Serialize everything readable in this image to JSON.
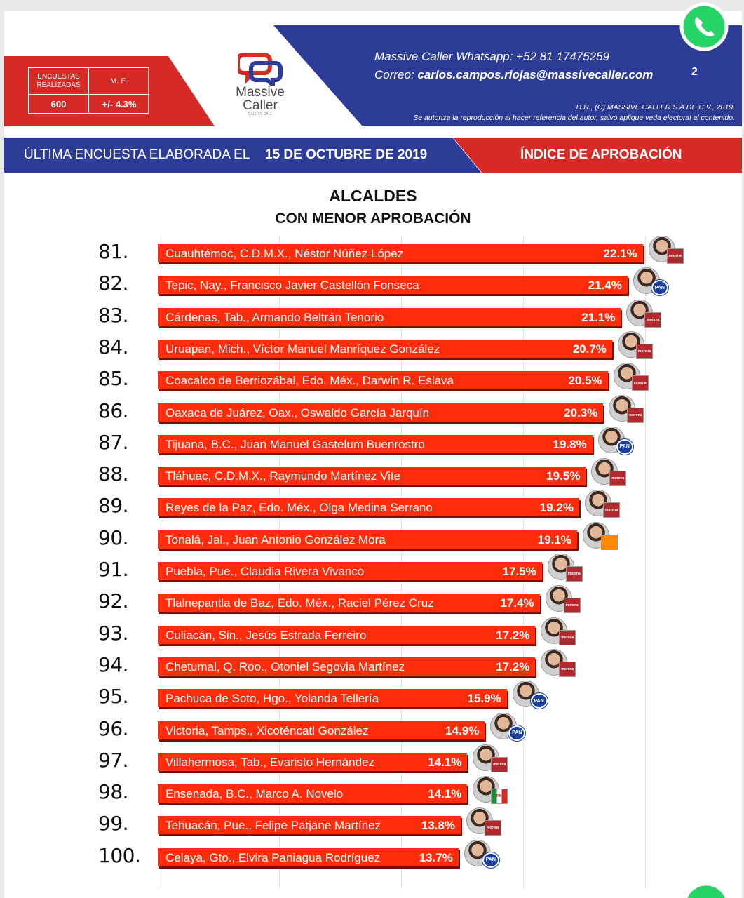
{
  "header": {
    "stats": {
      "col1_header": "ENCUESTAS REALIZADAS",
      "col2_header": "M. E.",
      "col1_value": "600",
      "col2_value": "+/- 4.3%"
    },
    "logo": {
      "line1": "Massive",
      "line2": "Caller",
      "tagline": "CALL TO CALL"
    },
    "contact_line1": "Massive Caller Whatsapp: +52   81 17475259",
    "contact_line2_prefix": "Correo: ",
    "contact_line2_email": "carlos.campos.riojas@massivecaller.com",
    "page_number": "2",
    "legal_line1": "D.R., (C) MASSIVE CALLER S.A DE C.V., 2019.",
    "legal_line2": "Se autoriza la reproducción al hacer referencia del autor, salvo aplique veda electoral al contenido."
  },
  "banner": {
    "left_text": "ÚLTIMA ENCUESTA ELABORADA EL",
    "date": "15 DE OCTUBRE DE 2019",
    "right_text": "ÍNDICE DE APROBACIÓN"
  },
  "colors": {
    "bar": "#ff2d0c",
    "blue": "#2d3c96",
    "red": "#d52a26"
  },
  "chart_data": {
    "type": "bar",
    "orientation": "horizontal",
    "title": "ALCALDES",
    "subtitle": "CON MENOR APROBACIÓN",
    "rows": [
      {
        "rank": "81.",
        "label": "Cuauhtémoc, C.D.M.X., Néstor Núñez López",
        "value": 22.1,
        "value_label": "22.1%",
        "party": "morena"
      },
      {
        "rank": "82.",
        "label": "Tepic, Nay., Francisco Javier Castellón Fonseca",
        "value": 21.4,
        "value_label": "21.4%",
        "party": "pan"
      },
      {
        "rank": "83.",
        "label": "Cárdenas, Tab., Armando Beltrán Tenorio",
        "value": 21.1,
        "value_label": "21.1%",
        "party": "morena"
      },
      {
        "rank": "84.",
        "label": "Uruapan, Mich., Víctor Manuel Manríquez González",
        "value": 20.7,
        "value_label": "20.7%",
        "party": "morena"
      },
      {
        "rank": "85.",
        "label": "Coacalco de Berriozábal, Edo. Méx., Darwin R. Eslava",
        "value": 20.5,
        "value_label": "20.5%",
        "party": "morena"
      },
      {
        "rank": "86.",
        "label": "Oaxaca de Juárez, Oax., Oswaldo García Jarquín",
        "value": 20.3,
        "value_label": "20.3%",
        "party": "morena"
      },
      {
        "rank": "87.",
        "label": "Tijuana, B.C., Juan Manuel Gastelum Buenrostro",
        "value": 19.8,
        "value_label": "19.8%",
        "party": "pan"
      },
      {
        "rank": "88.",
        "label": "Tláhuac, C.D.M.X., Raymundo Martínez Vite",
        "value": 19.5,
        "value_label": "19.5%",
        "party": "morena"
      },
      {
        "rank": "89.",
        "label": "Reyes de la Paz, Edo. Méx., Olga Medina Serrano",
        "value": 19.2,
        "value_label": "19.2%",
        "party": "morena"
      },
      {
        "rank": "90.",
        "label": "Tonalá, Jal., Juan Antonio González Mora",
        "value": 19.1,
        "value_label": "19.1%",
        "party": "mc"
      },
      {
        "rank": "91.",
        "label": "Puebla, Pue., Claudia Rivera Vivanco",
        "value": 17.5,
        "value_label": "17.5%",
        "party": "morena"
      },
      {
        "rank": "92.",
        "label": "Tlalnepantla de Baz, Edo. Méx., Raciel Pérez Cruz",
        "value": 17.4,
        "value_label": "17.4%",
        "party": "morena"
      },
      {
        "rank": "93.",
        "label": "Culiacán, Sin., Jesús Estrada Ferreiro",
        "value": 17.2,
        "value_label": "17.2%",
        "party": "morena"
      },
      {
        "rank": "94.",
        "label": "Chetumal, Q. Roo., Otoniel Segovia Martínez",
        "value": 17.2,
        "value_label": "17.2%",
        "party": "morena"
      },
      {
        "rank": "95.",
        "label": "Pachuca de Soto, Hgo., Yolanda Tellería",
        "value": 15.9,
        "value_label": "15.9%",
        "party": "pan"
      },
      {
        "rank": "96.",
        "label": "Victoria, Tamps., Xicoténcatl González",
        "value": 14.9,
        "value_label": "14.9%",
        "party": "pan"
      },
      {
        "rank": "97.",
        "label": "Villahermosa, Tab., Evaristo Hernández",
        "value": 14.1,
        "value_label": "14.1%",
        "party": "morena"
      },
      {
        "rank": "98.",
        "label": "Ensenada, B.C., Marco A. Novelo",
        "value": 14.1,
        "value_label": "14.1%",
        "party": "pri"
      },
      {
        "rank": "99.",
        "label": "Tehuacán, Pue., Felipe Patjane Martínez",
        "value": 13.8,
        "value_label": "13.8%",
        "party": "morena"
      },
      {
        "rank": "100.",
        "label": "Celaya, Gto., Elvira Paniagua Rodríguez",
        "value": 13.7,
        "value_label": "13.7%",
        "party": "pan"
      }
    ],
    "party_marks": {
      "morena": "morena",
      "pan": "PAN",
      "mc": "",
      "pri": "PRI"
    }
  }
}
